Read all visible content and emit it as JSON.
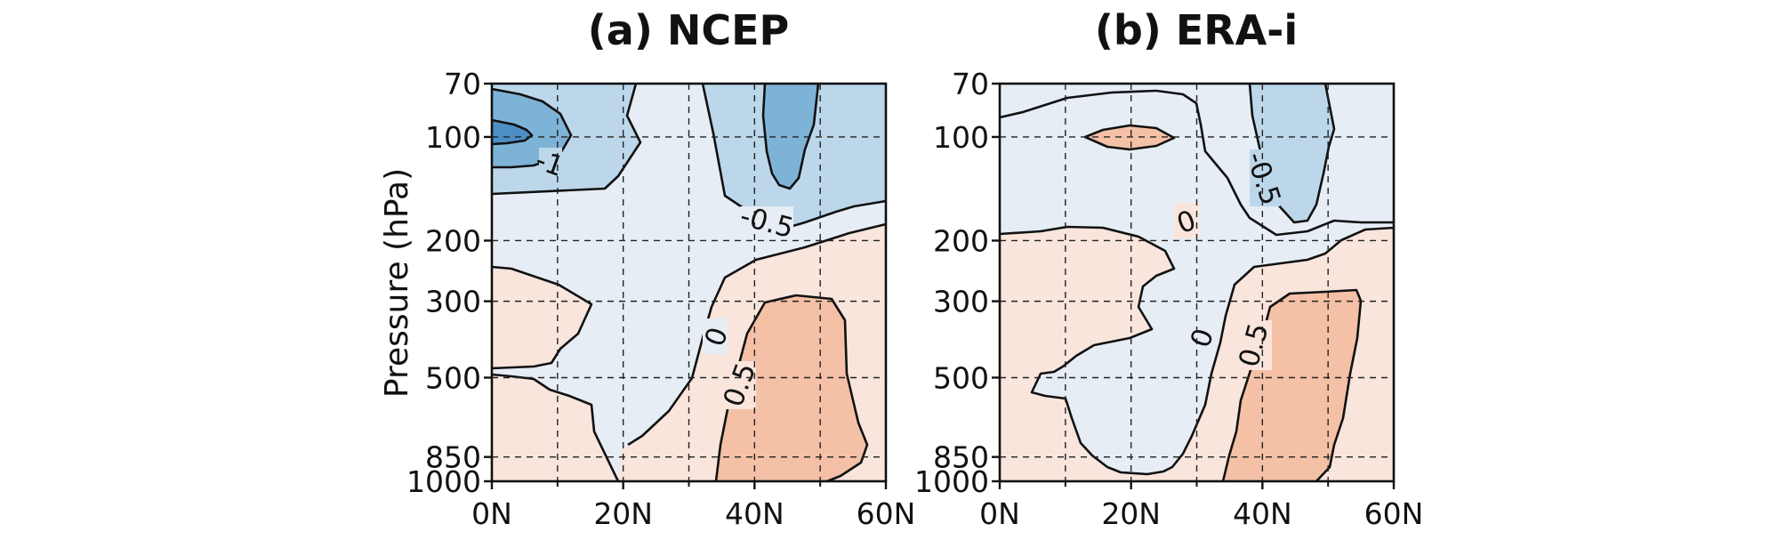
{
  "chart_data": [
    {
      "type": "contour",
      "title": "(a) NCEP",
      "ylabel": "Pressure (hPa)",
      "xlabel": "",
      "x_ticks": [
        "0N",
        "20N",
        "40N",
        "60N"
      ],
      "y_ticks": [
        "70",
        "100",
        "200",
        "300",
        "500",
        "850",
        "1000"
      ],
      "y_tick_values": [
        70,
        100,
        200,
        300,
        500,
        850,
        1000
      ],
      "xlim": [
        0,
        60
      ],
      "ylim": [
        1000,
        70
      ],
      "y_scale": "log",
      "grid": true,
      "contour_levels": [
        -1.5,
        -1,
        -0.5,
        0,
        0.5,
        1
      ],
      "contour_labels": [
        "-1",
        "-0.5",
        "0",
        "0.5"
      ],
      "regions": [
        {
          "level": "0 to 0.5",
          "color": "#f9e5dc",
          "description": "weak positive, lower troposphere"
        },
        {
          "level": "-0.5 to 0",
          "color": "#e6edf5",
          "description": "weak negative, central"
        },
        {
          "level": "-1 to -0.5",
          "color": "#bcd7ea",
          "description": "upper levels"
        },
        {
          "level": "-1.5 to -1",
          "color": "#7eb3d8",
          "description": "near 100 hPa, 0N and 45N"
        },
        {
          "level": "< -1.5",
          "color": "#4d8fc4",
          "description": "core near 0N, 100 hPa"
        },
        {
          "level": "0.5 to 1",
          "color": "#f4c0a6",
          "description": "35N-55N, 300-1000 hPa"
        }
      ]
    },
    {
      "type": "contour",
      "title": "(b) ERA-i",
      "ylabel": "",
      "xlabel": "",
      "x_ticks": [
        "0N",
        "20N",
        "40N",
        "60N"
      ],
      "y_ticks": [
        "70",
        "100",
        "200",
        "300",
        "500",
        "850",
        "1000"
      ],
      "y_tick_values": [
        70,
        100,
        200,
        300,
        500,
        850,
        1000
      ],
      "xlim": [
        0,
        60
      ],
      "ylim": [
        1000,
        70
      ],
      "y_scale": "log",
      "grid": true,
      "contour_levels": [
        -1,
        -0.5,
        0,
        0.5,
        1
      ],
      "contour_labels": [
        "-0.5",
        "0",
        "0",
        "0.5"
      ],
      "regions": [
        {
          "level": "0 to 0.5",
          "color": "#f9e5dc",
          "description": "weak positive"
        },
        {
          "level": "-0.5 to 0",
          "color": "#e6edf5",
          "description": "weak negative"
        },
        {
          "level": "-1 to -0.5",
          "color": "#bcd7ea",
          "description": "near 40N-50N, 70-200 hPa"
        },
        {
          "level": "0.5 to 1",
          "color": "#f4c0a6",
          "description": "35N-55N, 300-1000 hPa and small core near 20N, 100 hPa"
        }
      ]
    }
  ]
}
